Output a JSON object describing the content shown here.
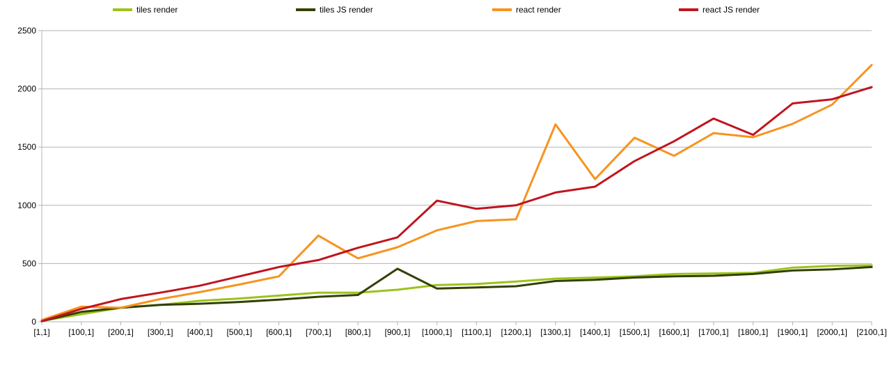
{
  "chart_data": {
    "type": "line",
    "title": "",
    "xlabel": "",
    "ylabel": "",
    "ylim": [
      0,
      2500
    ],
    "yticks": [
      "0",
      "500",
      "1000",
      "1500",
      "2000",
      "2500"
    ],
    "grid": true,
    "legend_position": "top",
    "categories": [
      "[1,1]",
      "[100,1]",
      "[200,1]",
      "[300,1]",
      "[400,1]",
      "[500,1]",
      "[600,1]",
      "[700,1]",
      "[800,1]",
      "[900,1]",
      "[1000,1]",
      "[1100,1]",
      "[1200,1]",
      "[1300,1]",
      "[1400,1]",
      "[1500,1]",
      "[1600,1]",
      "[1700,1]",
      "[1800,1]",
      "[1900,1]",
      "[2000,1]",
      "[2100,1]"
    ],
    "series": [
      {
        "name": "tiles render",
        "color": "#9bc31a",
        "values": [
          8,
          65,
          120,
          145,
          180,
          200,
          225,
          250,
          250,
          275,
          315,
          325,
          345,
          370,
          380,
          390,
          410,
          415,
          420,
          465,
          480,
          485
        ]
      },
      {
        "name": "tiles JS render",
        "color": "#314004",
        "values": [
          5,
          85,
          120,
          145,
          155,
          170,
          190,
          215,
          230,
          455,
          285,
          295,
          305,
          350,
          360,
          380,
          390,
          395,
          410,
          440,
          450,
          470
        ]
      },
      {
        "name": "react render",
        "color": "#f7931e",
        "values": [
          15,
          130,
          120,
          195,
          255,
          320,
          390,
          740,
          545,
          640,
          785,
          865,
          880,
          1695,
          1225,
          1580,
          1425,
          1620,
          1585,
          1700,
          1865,
          2205
        ]
      },
      {
        "name": "react JS render",
        "color": "#c0141e",
        "values": [
          5,
          110,
          195,
          250,
          310,
          390,
          470,
          530,
          635,
          725,
          1040,
          970,
          1000,
          1110,
          1160,
          1380,
          1550,
          1745,
          1605,
          1875,
          1910,
          2015
        ]
      }
    ]
  }
}
